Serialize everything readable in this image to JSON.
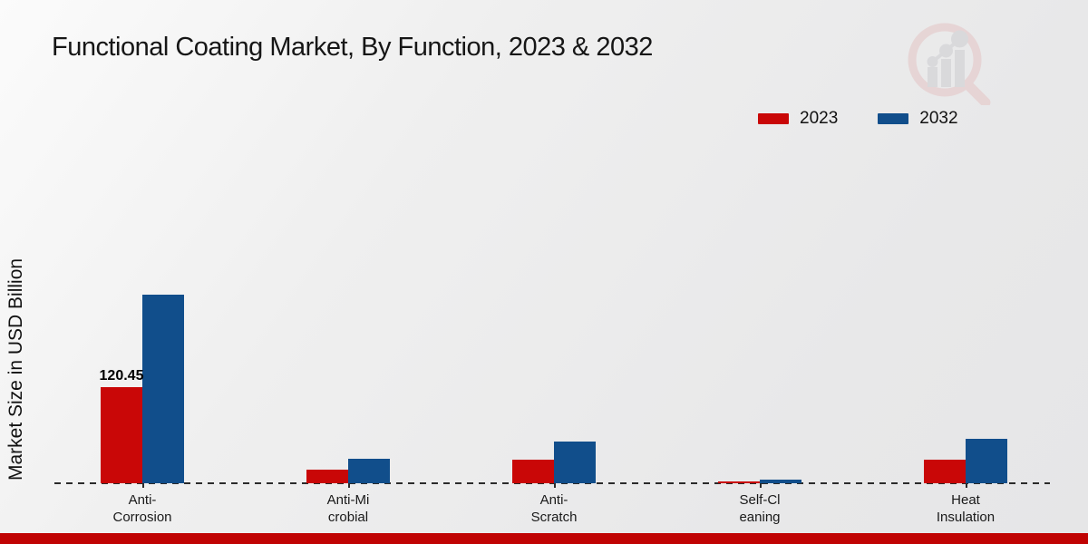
{
  "chart_data": {
    "type": "bar",
    "title": "Functional Coating Market, By Function, 2023 & 2032",
    "ylabel": "Market Size in USD Billion",
    "xlabel": "",
    "categories": [
      "Anti-Corrosion",
      "Anti-Microbial",
      "Anti-Scratch",
      "Self-Cleaning",
      "Heat Insulation"
    ],
    "category_label_lines": [
      [
        "Anti-",
        "Corrosion"
      ],
      [
        "Anti-Mi",
        "crobial"
      ],
      [
        "Anti-",
        "Scratch"
      ],
      [
        "Self-Cl",
        "eaning"
      ],
      [
        "Heat",
        "Insulation"
      ]
    ],
    "series": [
      {
        "name": "2023",
        "color": "#c90707",
        "values": [
          120.45,
          17.0,
          29.5,
          2.3,
          29.5
        ]
      },
      {
        "name": "2032",
        "color": "#114e8b",
        "values": [
          236.4,
          30.7,
          52.3,
          4.5,
          55.7
        ]
      }
    ],
    "bar_labels": [
      {
        "series_index": 0,
        "category_index": 0,
        "text": "120.45"
      }
    ],
    "ylim": [
      0,
      260
    ],
    "grid": false,
    "legend_position": "top-right",
    "baseline_style": "dashed",
    "baseline_color": "#2b2b2b"
  },
  "watermark_icon": "magnifier-bar-chart-logo",
  "footer_bar_color": "#c00303"
}
